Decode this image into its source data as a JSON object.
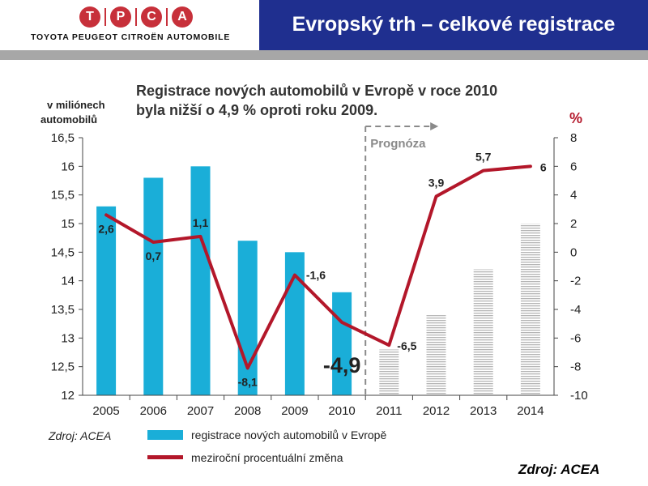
{
  "logo": {
    "letters": [
      "T",
      "P",
      "C",
      "A"
    ],
    "tagline": "TOYOTA PEUGEOT CITROËN AUTOMOBILE",
    "color": "#c7303a"
  },
  "slide_title": "Evropský trh – celkové registrace",
  "chart_data": {
    "type": "bar",
    "title_line1": "Registrace nových automobilů v Evropě v roce 2010",
    "title_line2": "byla nižší o 4,9 % oproti roku 2009.",
    "ylabel_left_line1": "v miliónech",
    "ylabel_left_line2": "automobilů",
    "ylabel_right": "%",
    "categories": [
      "2005",
      "2006",
      "2007",
      "2008",
      "2009",
      "2010",
      "2011",
      "2012",
      "2013",
      "2014"
    ],
    "ylim_left": [
      12,
      16.5
    ],
    "yticks_left": [
      "12",
      "12,5",
      "13",
      "13,5",
      "14",
      "14,5",
      "15",
      "15,5",
      "16",
      "16,5"
    ],
    "ylim_right": [
      -10,
      8
    ],
    "yticks_right": [
      "-10",
      "-8",
      "-6",
      "-4",
      "-2",
      "0",
      "2",
      "4",
      "6",
      "8"
    ],
    "forecast_label": "Prognóza",
    "forecast_start": "2011",
    "series": [
      {
        "name": "registrace nových automobilů v Evropě",
        "axis": "left",
        "kind": "bar",
        "color": "#1aaed8",
        "forecast_color": "#b5b5b5",
        "values": [
          15.3,
          15.8,
          16.0,
          14.7,
          14.5,
          13.8,
          12.8,
          13.4,
          14.2,
          15.0
        ]
      },
      {
        "name": "meziroční procentuální změna",
        "axis": "right",
        "kind": "line",
        "color": "#b3172a",
        "values": [
          2.6,
          0.7,
          1.1,
          -8.1,
          -1.6,
          -4.9,
          -6.5,
          3.9,
          5.7,
          6
        ],
        "labels": [
          "2,6",
          "0,7",
          "1,1",
          "-8,1",
          "-1,6",
          "-4,9",
          "-6,5",
          "3,9",
          "5,7",
          "6"
        ]
      }
    ],
    "source_inline": "Zdroj: ACEA",
    "grid": false,
    "legend_position": "bottom"
  },
  "source_footer": "Zdroj: ACEA"
}
